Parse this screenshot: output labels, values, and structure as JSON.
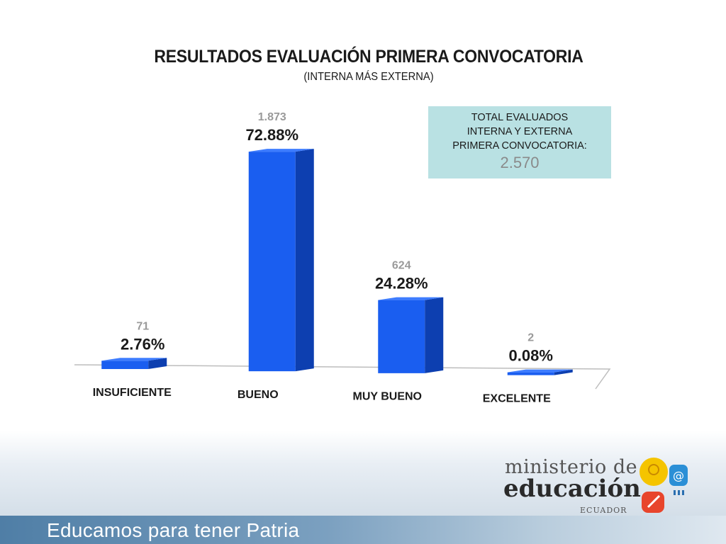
{
  "slide": {
    "title": "RESULTADOS EVALUACIÓN PRIMERA CONVOCATORIA",
    "subtitle": "(INTERNA MÁS EXTERNA)"
  },
  "infobox": {
    "line1": "TOTAL EVALUADOS",
    "line2": "INTERNA Y EXTERNA",
    "line3": "PRIMERA CONVOCATORIA:",
    "value": "2.570"
  },
  "chart_data": {
    "type": "bar",
    "title": "RESULTADOS EVALUACIÓN PRIMERA CONVOCATORIA",
    "categories": [
      "INSUFICIENTE",
      "BUENO",
      "MUY BUENO",
      "EXCELENTE"
    ],
    "values": [
      2.76,
      72.88,
      24.28,
      0.08
    ],
    "count_labels": [
      "71",
      "1.873",
      "624",
      "2"
    ],
    "percent_labels": [
      "2.76%",
      "72.88%",
      "24.28%",
      "0.08%"
    ],
    "grid": false,
    "bar_color": "#1a5ef0"
  },
  "footer": {
    "slogan": "Educamos para tener Patria",
    "logo_line1": "ministerio de",
    "logo_line2": "educación",
    "logo_line3": "ECUADOR"
  }
}
